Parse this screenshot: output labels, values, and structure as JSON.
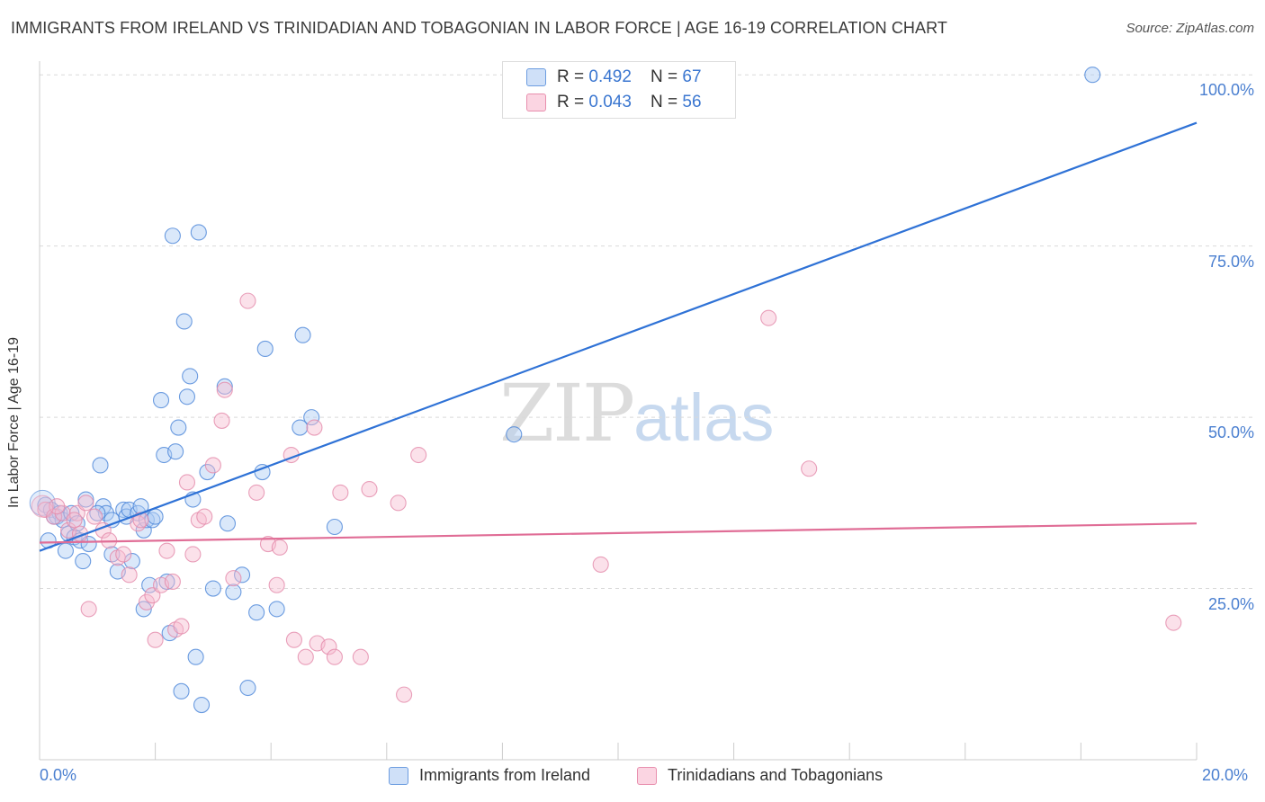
{
  "title": "IMMIGRANTS FROM IRELAND VS TRINIDADIAN AND TOBAGONIAN IN LABOR FORCE | AGE 16-19 CORRELATION CHART",
  "source": "Source: ZipAtlas.com",
  "watermark": {
    "zip": "ZIP",
    "atlas": "atlas"
  },
  "legend_top": [
    {
      "r_label": "R = ",
      "r_value": "0.492",
      "n_label": "N = ",
      "n_value": "67",
      "color": "#aecbf3"
    },
    {
      "r_label": "R = ",
      "r_value": "0.043",
      "n_label": "N = ",
      "n_value": "56",
      "color": "#f7bdd0"
    }
  ],
  "legend_bottom": [
    {
      "label": "Immigrants from Ireland",
      "color": "#aecbf3"
    },
    {
      "label": "Trinidadians and Tobagonians",
      "color": "#f7bdd0"
    }
  ],
  "chart_data": {
    "type": "scatter",
    "title": "IMMIGRANTS FROM IRELAND VS TRINIDADIAN AND TOBAGONIAN IN LABOR FORCE | AGE 16-19 CORRELATION CHART",
    "xlabel": "",
    "ylabel": "In Labor Force | Age 16-19",
    "xlim": [
      0,
      20
    ],
    "ylim": [
      0,
      102
    ],
    "x_ticks": [
      "0.0%",
      "20.0%"
    ],
    "y_ticks": [
      {
        "value": 25,
        "label": "25.0%"
      },
      {
        "value": 50,
        "label": "50.0%"
      },
      {
        "value": 75,
        "label": "75.0%"
      },
      {
        "value": 100,
        "label": "100.0%"
      }
    ],
    "grid": true,
    "legend_position": "top-center",
    "series": [
      {
        "name": "Immigrants from Ireland",
        "color": "#4a85d8",
        "fill": "#aecbf3",
        "trend": {
          "x": [
            0,
            20
          ],
          "y": [
            30.5,
            93.0
          ],
          "color": "#2f72d6"
        },
        "points": [
          [
            0.1,
            37.2
          ],
          [
            0.15,
            32.0
          ],
          [
            0.2,
            36.5
          ],
          [
            0.3,
            35.5
          ],
          [
            0.35,
            36.0
          ],
          [
            0.4,
            35.0
          ],
          [
            0.45,
            30.5
          ],
          [
            0.5,
            33.0
          ],
          [
            0.55,
            36.0
          ],
          [
            0.6,
            32.5
          ],
          [
            0.7,
            32.0
          ],
          [
            0.75,
            29.0
          ],
          [
            0.8,
            38.0
          ],
          [
            0.85,
            31.5
          ],
          [
            1.05,
            43.0
          ],
          [
            1.1,
            37.0
          ],
          [
            1.15,
            36.0
          ],
          [
            1.25,
            30.0
          ],
          [
            1.25,
            35.0
          ],
          [
            1.35,
            27.5
          ],
          [
            1.45,
            36.5
          ],
          [
            1.5,
            35.5
          ],
          [
            1.55,
            36.5
          ],
          [
            1.6,
            29.0
          ],
          [
            1.7,
            36.0
          ],
          [
            1.75,
            37.0
          ],
          [
            1.8,
            22.0
          ],
          [
            1.8,
            33.5
          ],
          [
            1.85,
            35.0
          ],
          [
            1.9,
            25.5
          ],
          [
            1.95,
            35.0
          ],
          [
            2.0,
            35.5
          ],
          [
            2.1,
            52.5
          ],
          [
            2.15,
            44.5
          ],
          [
            2.2,
            26.0
          ],
          [
            2.25,
            18.5
          ],
          [
            2.3,
            76.5
          ],
          [
            2.35,
            45.0
          ],
          [
            2.4,
            48.5
          ],
          [
            2.45,
            10.0
          ],
          [
            2.5,
            64.0
          ],
          [
            2.55,
            53.0
          ],
          [
            2.6,
            56.0
          ],
          [
            2.65,
            38.0
          ],
          [
            2.7,
            15.0
          ],
          [
            2.75,
            77.0
          ],
          [
            2.8,
            8.0
          ],
          [
            2.9,
            42.0
          ],
          [
            3.0,
            25.0
          ],
          [
            3.2,
            54.5
          ],
          [
            3.25,
            34.5
          ],
          [
            3.35,
            24.5
          ],
          [
            3.5,
            27.0
          ],
          [
            3.6,
            10.5
          ],
          [
            3.75,
            21.5
          ],
          [
            3.85,
            42.0
          ],
          [
            3.9,
            60.0
          ],
          [
            4.1,
            22.0
          ],
          [
            4.5,
            48.5
          ],
          [
            4.55,
            62.0
          ],
          [
            4.7,
            50.0
          ],
          [
            5.1,
            34.0
          ],
          [
            8.2,
            47.5
          ],
          [
            18.2,
            100.0
          ],
          [
            1.0,
            36.0
          ],
          [
            0.25,
            35.5
          ],
          [
            0.65,
            34.5
          ]
        ]
      },
      {
        "name": "Trinidadians and Tobagonians",
        "color": "#e38aaa",
        "fill": "#f7bdd0",
        "trend": {
          "x": [
            0,
            20
          ],
          "y": [
            31.7,
            34.5
          ],
          "color": "#e06d96"
        },
        "points": [
          [
            0.1,
            36.5
          ],
          [
            0.25,
            35.5
          ],
          [
            0.4,
            36.0
          ],
          [
            0.5,
            33.5
          ],
          [
            0.65,
            36.0
          ],
          [
            0.7,
            33.0
          ],
          [
            0.8,
            37.5
          ],
          [
            0.85,
            22.0
          ],
          [
            0.95,
            35.5
          ],
          [
            1.1,
            33.5
          ],
          [
            1.2,
            32.0
          ],
          [
            1.35,
            29.5
          ],
          [
            1.45,
            30.0
          ],
          [
            1.55,
            27.0
          ],
          [
            1.7,
            34.5
          ],
          [
            1.75,
            35.0
          ],
          [
            1.85,
            23.0
          ],
          [
            1.95,
            24.0
          ],
          [
            2.0,
            17.5
          ],
          [
            2.1,
            25.5
          ],
          [
            2.2,
            30.5
          ],
          [
            2.3,
            26.0
          ],
          [
            2.35,
            19.0
          ],
          [
            2.45,
            19.5
          ],
          [
            2.55,
            40.5
          ],
          [
            2.65,
            30.0
          ],
          [
            2.75,
            35.0
          ],
          [
            2.85,
            35.5
          ],
          [
            3.0,
            43.0
          ],
          [
            3.15,
            49.5
          ],
          [
            3.2,
            54.0
          ],
          [
            3.35,
            26.5
          ],
          [
            3.6,
            67.0
          ],
          [
            3.75,
            39.0
          ],
          [
            3.95,
            31.5
          ],
          [
            4.15,
            31.0
          ],
          [
            4.1,
            25.5
          ],
          [
            4.35,
            44.5
          ],
          [
            4.4,
            17.5
          ],
          [
            4.6,
            15.0
          ],
          [
            4.75,
            48.5
          ],
          [
            4.8,
            17.0
          ],
          [
            5.0,
            16.5
          ],
          [
            5.1,
            15.0
          ],
          [
            5.2,
            39.0
          ],
          [
            5.55,
            15.0
          ],
          [
            5.7,
            39.5
          ],
          [
            6.2,
            37.5
          ],
          [
            6.3,
            9.5
          ],
          [
            6.55,
            44.5
          ],
          [
            9.7,
            28.5
          ],
          [
            12.6,
            64.5
          ],
          [
            13.3,
            42.5
          ],
          [
            19.6,
            20.0
          ],
          [
            0.6,
            35.0
          ],
          [
            0.3,
            37.0
          ]
        ]
      }
    ]
  }
}
